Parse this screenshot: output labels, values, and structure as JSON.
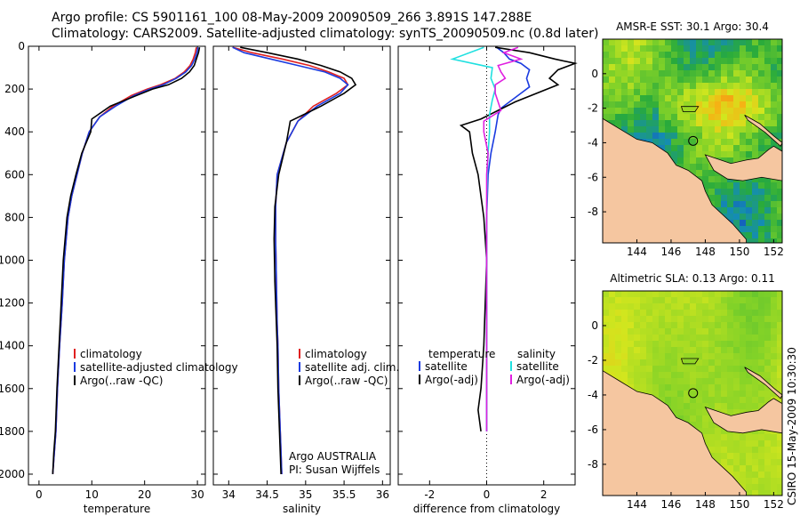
{
  "header": {
    "line1": "Argo profile: CS 5901161_100 08-May-2009 20090509_266 3.891S 147.288E",
    "line2": "Climatology: CARS2009. Satellite-adjusted climatology: synTS_20090509.nc (0.8d later)"
  },
  "side_label": "CSIRO 15-May-2009 10:30:30",
  "colors": {
    "clim": "#e02020",
    "sat": "#1a3be0",
    "argo": "#000000",
    "sat_sal": "#20e0e0",
    "argo_sal": "#e020e0",
    "land": "#f5c6a0"
  },
  "chart_data": [
    {
      "type": "line",
      "id": "temperature",
      "xlabel": "temperature",
      "xlim": [
        -2,
        31.5
      ],
      "xticks": [
        0,
        10,
        20,
        30
      ],
      "ylim": [
        0,
        2050
      ],
      "yticks": [
        0,
        200,
        400,
        600,
        800,
        1000,
        1200,
        1400,
        1600,
        1800,
        2000
      ],
      "legend": [
        "climatology",
        "satellite-adjusted climatology",
        "Argo(..raw -QC)"
      ],
      "series": [
        {
          "name": "climatology",
          "color": "#e02020",
          "x": [
            29.8,
            29.6,
            29.2,
            28.6,
            27.5,
            25.8,
            23,
            20.5,
            17.5,
            14,
            11.5,
            9.5,
            8.2,
            7.2,
            6.2,
            5.5,
            4.8,
            4.4,
            3.9,
            3.5,
            3.2,
            2.9,
            2.6
          ],
          "y": [
            5,
            30,
            60,
            90,
            120,
            150,
            180,
            200,
            230,
            280,
            330,
            400,
            500,
            600,
            700,
            800,
            1000,
            1200,
            1400,
            1600,
            1800,
            1900,
            2000
          ]
        },
        {
          "name": "satellite-adjusted climatology",
          "color": "#1a3be0",
          "x": [
            30.1,
            29.9,
            29.5,
            28.9,
            27.8,
            26,
            23.5,
            21,
            18,
            14.5,
            11.5,
            9.5,
            8.2,
            7.2,
            6.2,
            5.5,
            4.8,
            4.4,
            3.9,
            3.5,
            3.2,
            2.9,
            2.6
          ],
          "y": [
            5,
            30,
            60,
            90,
            120,
            150,
            180,
            200,
            230,
            280,
            330,
            400,
            500,
            600,
            700,
            800,
            1000,
            1200,
            1400,
            1600,
            1800,
            1900,
            2000
          ]
        },
        {
          "name": "Argo(..raw -QC)",
          "color": "#000000",
          "x": [
            30.4,
            30.2,
            29.8,
            29.4,
            28.5,
            27,
            24.5,
            21.5,
            18.5,
            13.5,
            10,
            9.8,
            8.1,
            7,
            6,
            5.3,
            4.6,
            4.2,
            3.8,
            3.4,
            3.1,
            2.8,
            2.6
          ],
          "y": [
            5,
            30,
            60,
            90,
            120,
            150,
            180,
            200,
            230,
            280,
            340,
            400,
            500,
            600,
            700,
            800,
            1000,
            1200,
            1400,
            1600,
            1800,
            1900,
            2000
          ]
        }
      ]
    },
    {
      "type": "line",
      "id": "salinity",
      "xlabel": "salinity",
      "xlim": [
        33.8,
        36.1
      ],
      "xticks": [
        34,
        34.5,
        35,
        35.5,
        36
      ],
      "ylim": [
        0,
        2050
      ],
      "legend": [
        "climatology",
        "satellite adj. clim.",
        "Argo(..raw -QC)"
      ],
      "annotations": [
        "Argo AUSTRALIA",
        "PI: Susan Wijffels"
      ],
      "series": [
        {
          "name": "climatology",
          "color": "#e02020",
          "x": [
            34.05,
            34.3,
            34.7,
            35.05,
            35.3,
            35.5,
            35.55,
            35.4,
            35.1,
            34.9,
            34.75,
            34.63,
            34.61,
            34.61,
            34.62,
            34.63,
            34.64,
            34.65,
            34.66,
            34.67,
            34.68,
            34.69
          ],
          "y": [
            5,
            30,
            60,
            90,
            120,
            150,
            180,
            220,
            280,
            350,
            450,
            600,
            750,
            900,
            1100,
            1300,
            1400,
            1600,
            1700,
            1800,
            1900,
            2000
          ]
        },
        {
          "name": "satellite adj. clim.",
          "color": "#1a3be0",
          "x": [
            34.05,
            34.2,
            34.55,
            34.9,
            35.25,
            35.45,
            35.55,
            35.45,
            35.15,
            34.9,
            34.75,
            34.63,
            34.61,
            34.61,
            34.62,
            34.63,
            34.64,
            34.65,
            34.66,
            34.67,
            34.68,
            34.69
          ],
          "y": [
            5,
            30,
            60,
            90,
            120,
            150,
            180,
            220,
            280,
            350,
            450,
            600,
            750,
            900,
            1100,
            1300,
            1400,
            1600,
            1700,
            1800,
            1900,
            2000
          ]
        },
        {
          "name": "Argo(..raw -QC)",
          "color": "#000000",
          "x": [
            34.15,
            34.5,
            34.9,
            35.2,
            35.45,
            35.6,
            35.65,
            35.5,
            35.2,
            34.8,
            34.75,
            34.65,
            34.6,
            34.59,
            34.6,
            34.62,
            34.63,
            34.64,
            34.65,
            34.66,
            34.67,
            34.68
          ],
          "y": [
            5,
            30,
            60,
            90,
            120,
            150,
            180,
            220,
            280,
            350,
            450,
            600,
            750,
            900,
            1100,
            1300,
            1400,
            1600,
            1700,
            1800,
            1900,
            2000
          ]
        }
      ]
    },
    {
      "type": "line",
      "id": "difference",
      "xlabel": "difference from climatology",
      "xlim": [
        -3.1,
        3.1
      ],
      "xticks": [
        -2,
        0,
        2
      ],
      "ylim": [
        0,
        2050
      ],
      "legend": {
        "temperature_title": "temperature",
        "salinity_title": "salinity",
        "items": [
          "satellite",
          "Argo(-adj)",
          "satellite",
          "Argo(-adj)"
        ]
      },
      "series": [
        {
          "name": "temperature satellite",
          "color": "#1a3be0",
          "x": [
            0.35,
            0.6,
            0.8,
            1.2,
            1.5,
            1.4,
            1.5,
            1.2,
            0.8,
            0.5,
            0.4,
            0.3,
            0.15,
            0.05,
            0,
            0,
            0,
            0,
            0,
            0
          ],
          "y": [
            5,
            30,
            60,
            80,
            110,
            150,
            190,
            220,
            260,
            290,
            320,
            400,
            500,
            600,
            800,
            1000,
            1200,
            1400,
            1600,
            1800
          ]
        },
        {
          "name": "temperature Argo(-adj)",
          "color": "#000000",
          "x": [
            0.3,
            1.5,
            2.4,
            3.1,
            2.5,
            2.2,
            2.5,
            1.0,
            -0.2,
            -0.9,
            -0.6,
            -0.5,
            -0.3,
            -0.1,
            0,
            -0.05,
            -0.1,
            -0.2,
            -0.3,
            -0.2
          ],
          "y": [
            5,
            30,
            60,
            80,
            110,
            150,
            180,
            260,
            340,
            370,
            400,
            500,
            600,
            800,
            1000,
            1200,
            1400,
            1600,
            1700,
            1800
          ]
        },
        {
          "name": "salinity satellite",
          "color": "#20e0e0",
          "x": [
            -0.1,
            -1.2,
            0.2,
            0.15,
            0.3,
            0.2,
            0.1,
            0.1,
            0.05,
            0.02,
            0,
            0,
            0,
            0,
            0
          ],
          "y": [
            5,
            60,
            100,
            150,
            200,
            250,
            320,
            400,
            500,
            600,
            800,
            1000,
            1200,
            1400,
            1800
          ]
        },
        {
          "name": "salinity Argo(-adj)",
          "color": "#e020e0",
          "x": [
            1.1,
            0.6,
            1.2,
            0.4,
            0.5,
            0.65,
            0.3,
            0.3,
            0.5,
            -0.1,
            -0.1,
            0.05,
            0,
            0,
            0,
            0
          ],
          "y": [
            5,
            30,
            60,
            90,
            120,
            150,
            180,
            220,
            300,
            350,
            400,
            500,
            600,
            800,
            1200,
            1800
          ]
        }
      ]
    },
    {
      "type": "heatmap",
      "id": "sst-map",
      "title": "AMSR-E SST: 30.1 Argo: 30.4",
      "xlim": [
        142,
        152.5
      ],
      "ylim": [
        -9.8,
        2
      ],
      "xticks": [
        "144",
        "146",
        "148",
        "150",
        "152"
      ],
      "yticks": [
        "0",
        "-2",
        "-4",
        "-6",
        "-8"
      ],
      "marker": {
        "lon": 147.288,
        "lat": -3.891
      }
    },
    {
      "type": "heatmap",
      "id": "sla-map",
      "title": "Altimetric SLA: 0.13 Argo: 0.11",
      "xlim": [
        142,
        152.5
      ],
      "ylim": [
        -9.8,
        2
      ],
      "xticks": [
        "144",
        "146",
        "148",
        "150",
        "152"
      ],
      "yticks": [
        "0",
        "-2",
        "-4",
        "-6",
        "-8"
      ],
      "marker": {
        "lon": 147.288,
        "lat": -3.891
      }
    }
  ]
}
